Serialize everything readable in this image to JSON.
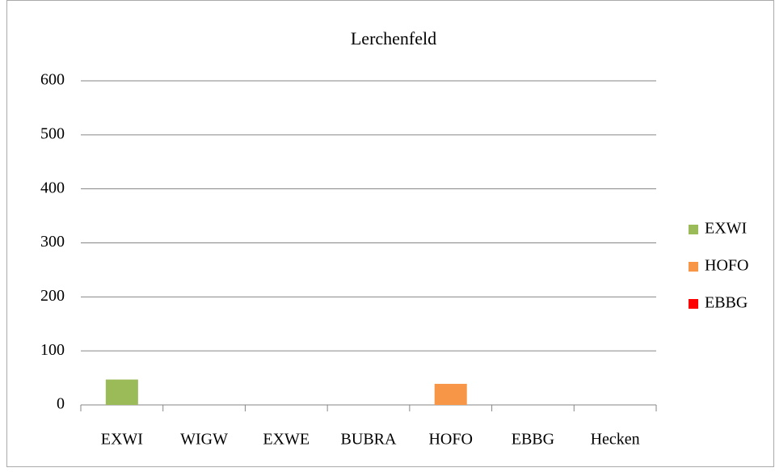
{
  "chart_data": {
    "type": "bar",
    "title": "Lerchenfeld",
    "categories": [
      "EXWI",
      "WIGW",
      "EXWE",
      "BUBRA",
      "HOFO",
      "EBBG",
      "Hecken"
    ],
    "series": [
      {
        "name": "EXWI",
        "color": "#9bbb59",
        "values": [
          47,
          null,
          null,
          null,
          null,
          null,
          null
        ]
      },
      {
        "name": "HOFO",
        "color": "#f79646",
        "values": [
          null,
          null,
          null,
          null,
          39,
          null,
          null
        ]
      },
      {
        "name": "EBBG",
        "color": "#ff0000",
        "values": [
          null,
          null,
          null,
          null,
          null,
          0,
          null
        ]
      }
    ],
    "ylim": [
      0,
      600
    ],
    "yticks": [
      0,
      100,
      200,
      300,
      400,
      500,
      600
    ],
    "grid": true,
    "legend": "right"
  }
}
